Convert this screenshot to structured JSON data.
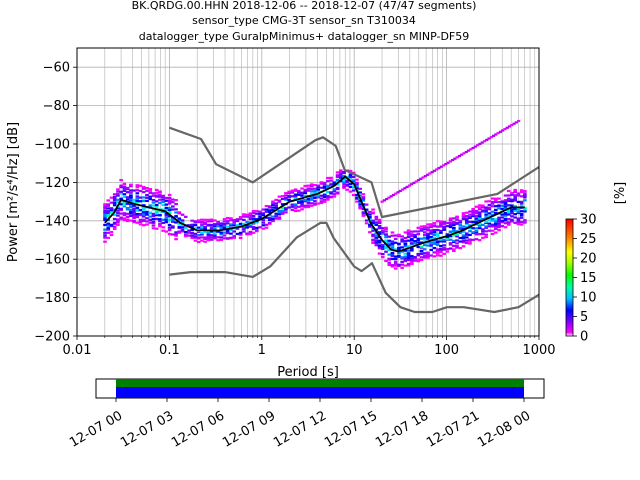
{
  "chart_data": {
    "type": "heatmap",
    "title_lines": [
      "BK.QRDG.00.HHN   2018-12-06 -- 2018-12-07  (47/47 segments)",
      "sensor_type CMG-3T sensor_sn T310034",
      "datalogger_type GuralpMinimus+ datalogger_sn MINP-DF59"
    ],
    "xlabel": "Period [s]",
    "ylabel": "Power [m²/s⁴/Hz] [dB]",
    "x_scale": "log",
    "xlim": [
      0.01,
      1000
    ],
    "ylim": [
      -200,
      -50
    ],
    "x_ticks": [
      0.01,
      0.1,
      1,
      10,
      100,
      1000
    ],
    "x_tick_labels": [
      "0.01",
      "0.1",
      "1",
      "10",
      "100",
      "1000"
    ],
    "y_ticks": [
      -60,
      -80,
      -100,
      -120,
      -140,
      -160,
      -180,
      -200
    ],
    "y_tick_labels": [
      "−60",
      "−80",
      "−100",
      "−120",
      "−140",
      "−160",
      "−180",
      "−200"
    ],
    "grid": true,
    "colorbar": {
      "label": "[%]",
      "range": [
        0,
        30
      ],
      "ticks": [
        0,
        5,
        10,
        15,
        20,
        25,
        30
      ],
      "tick_labels": [
        "0",
        "5",
        "10",
        "15",
        "20",
        "25",
        "30"
      ]
    },
    "series": [
      {
        "role": "mean",
        "color": "#000000",
        "x": [
          0.02,
          0.025,
          0.03,
          0.04,
          0.06,
          0.09,
          0.13,
          0.2,
          0.35,
          0.6,
          1,
          2,
          4,
          6,
          8,
          10,
          12,
          15,
          20,
          25,
          30,
          40,
          60,
          100,
          150,
          200,
          300,
          500,
          700
        ],
        "y": [
          -141,
          -136,
          -129,
          -131,
          -133,
          -135,
          -141,
          -145,
          -145,
          -143,
          -139,
          -130,
          -126,
          -122,
          -117,
          -121,
          -130,
          -141,
          -150,
          -155,
          -156,
          -154,
          -151,
          -148,
          -145,
          -142,
          -138,
          -133,
          -133
        ]
      },
      {
        "role": "noise-model-high",
        "color": "#666666",
        "x": [
          0.1,
          0.22,
          0.32,
          0.8,
          3.8,
          4.6,
          6.3,
          7.9,
          15.4,
          20,
          354.8,
          1000
        ],
        "y": [
          -91.5,
          -97.4,
          -110.5,
          -120,
          -98,
          -96.5,
          -101,
          -113.5,
          -120,
          -138,
          -126,
          -112
        ]
      },
      {
        "role": "noise-model-low",
        "color": "#666666",
        "x": [
          0.1,
          0.17,
          0.4,
          0.8,
          1.24,
          2.4,
          4.3,
          5,
          6,
          10,
          12,
          15.6,
          21.9,
          31.6,
          45,
          70,
          101,
          154,
          328,
          600,
          1000
        ],
        "y": [
          -168,
          -166.7,
          -166.7,
          -169.2,
          -163.7,
          -148.6,
          -141.1,
          -141.1,
          -149,
          -163.8,
          -166.2,
          -162.1,
          -177.5,
          -185,
          -187.5,
          -187.5,
          -185,
          -185,
          -187.5,
          -185,
          -178.5
        ]
      }
    ],
    "timeline": {
      "tick_labels": [
        "12-07 00",
        "12-07 03",
        "12-07 06",
        "12-07 09",
        "12-07 12",
        "12-07 15",
        "12-07 18",
        "12-07 21",
        "12-08 00"
      ],
      "coverage_color": "#008000",
      "segment_color": "#0000ff"
    }
  }
}
